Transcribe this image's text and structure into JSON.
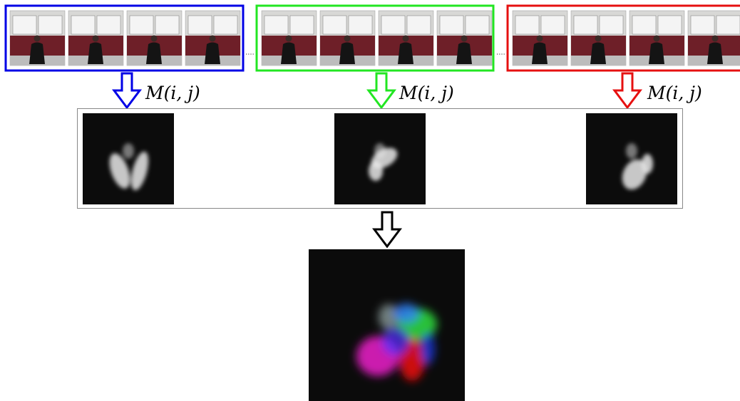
{
  "groups": [
    {
      "label": "M(i, j)"
    },
    {
      "label": "M(i, j)"
    },
    {
      "label": "M(i, j)"
    }
  ]
}
